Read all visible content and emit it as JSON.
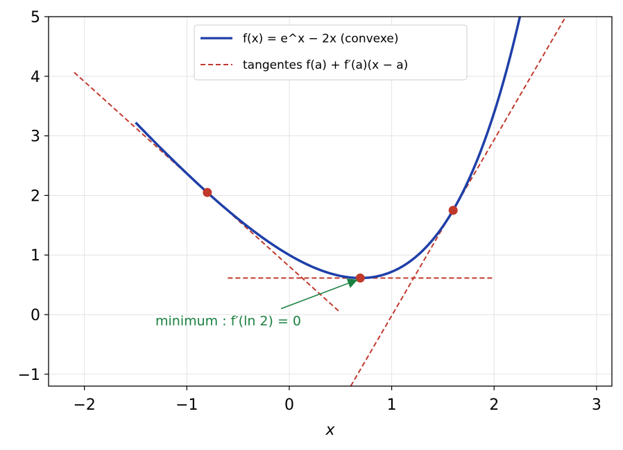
{
  "chart_data": {
    "type": "line",
    "xlabel": "x",
    "xlim": [
      -2.35,
      3.15
    ],
    "ylim": [
      -1.2,
      5
    ],
    "x_ticks": [
      -2,
      -1,
      0,
      1,
      2,
      3
    ],
    "y_ticks": [
      -1,
      0,
      1,
      2,
      3,
      4,
      5
    ],
    "x_tick_labels": [
      "−2",
      "−1",
      "0",
      "1",
      "2",
      "3"
    ],
    "y_tick_labels": [
      "−1",
      "0",
      "1",
      "2",
      "3",
      "4",
      "5"
    ],
    "grid": true,
    "legend_position": "top-center",
    "series": [
      {
        "name": "f(x) = e^x − 2x (convexe)",
        "function": "exp(x) - 2*x",
        "x_range": [
          -1.5,
          2.3
        ],
        "color": "#1f3fa8",
        "style": "solid"
      },
      {
        "name": "tangentes f(a) + f′(a)(x − a)",
        "color": "#c0392b",
        "style": "dashed",
        "lines": [
          {
            "a": -0.8,
            "x_range": [
              -2.1,
              0.5
            ]
          },
          {
            "a": 0.693,
            "x_range": [
              -0.6,
              2.0
            ]
          },
          {
            "a": 1.6,
            "x_range": [
              0.6,
              2.7
            ]
          }
        ]
      }
    ],
    "points": [
      {
        "x": -0.8,
        "y": 2.05
      },
      {
        "x": 0.693,
        "y": 0.614
      },
      {
        "x": 1.6,
        "y": 1.75
      }
    ],
    "annotation": {
      "text": "minimum : f′(ln 2) = 0",
      "text_x": -0.4,
      "text_y": -0.1,
      "arrow_from": [
        -0.08,
        0.1
      ],
      "arrow_to": [
        0.693,
        0.614
      ],
      "color": "#1a8040"
    },
    "colors": {
      "curve": "#1f3fa8",
      "tangent": "#c0392b",
      "point": "#c0392b",
      "annotation": "#1a8040",
      "grid": "#e3e3e3"
    }
  }
}
